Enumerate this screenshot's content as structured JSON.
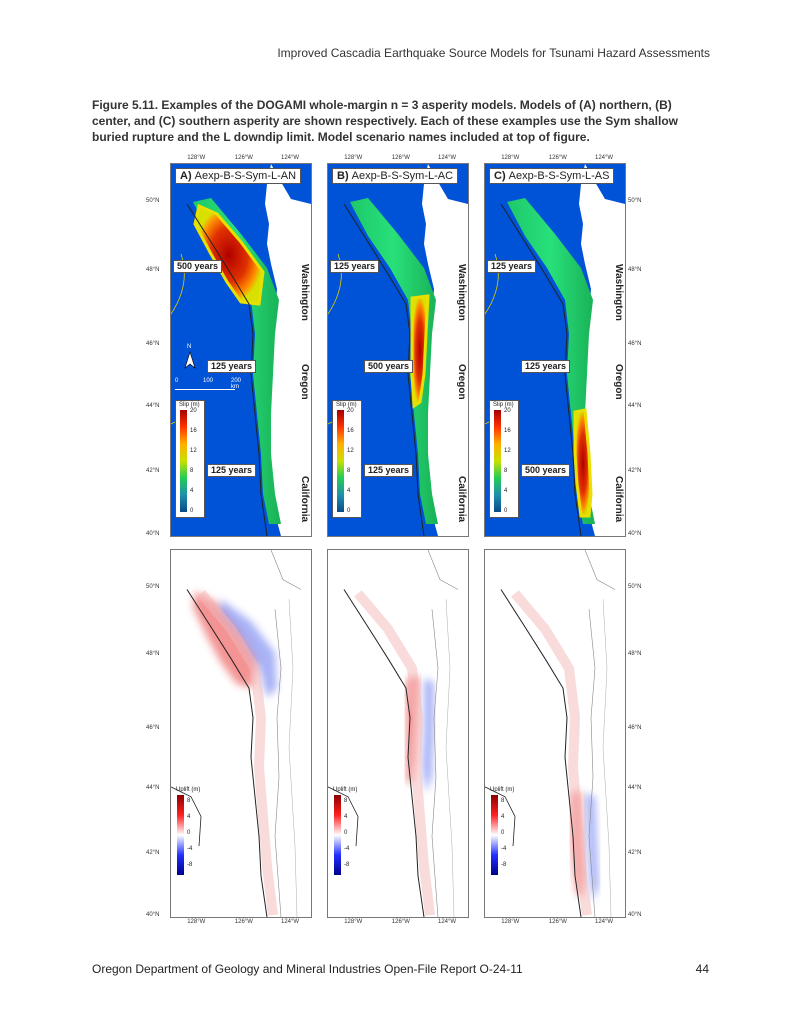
{
  "header": {
    "title": "Improved Cascadia Earthquake Source Models for Tsunami Hazard Assessments"
  },
  "caption": {
    "text": "Figure 5.11. Examples of the DOGAMI whole-margin n = 3 asperity models. Models of (A) northern, (B) center, and (C) southern asperity are shown respectively. Each of these examples use the Sym shallow buried rupture and the L downdip limit. Model scenario names included at top of figure."
  },
  "axes": {
    "lon_ticks": [
      "128°W",
      "126°W",
      "124°W"
    ],
    "lat_ticks": [
      "50°N",
      "48°N",
      "46°N",
      "44°N",
      "42°N",
      "40°N"
    ]
  },
  "panels": [
    {
      "letter": "A)",
      "name": "Aexp-B-S-Sym-L-AN",
      "years": [
        "500 years",
        "125 years",
        "125 years"
      ]
    },
    {
      "letter": "B)",
      "name": "Aexp-B-S-Sym-L-AC",
      "years": [
        "125 years",
        "500 years",
        "125 years"
      ]
    },
    {
      "letter": "C)",
      "name": "Aexp-B-S-Sym-L-AS",
      "years": [
        "125 years",
        "125 years",
        "500 years"
      ]
    }
  ],
  "states": {
    "washington": "Washington",
    "oregon": "Oregon",
    "california": "California"
  },
  "scale": {
    "north": "N",
    "labels": [
      "0",
      "100",
      "200 km"
    ]
  },
  "slip_colorbar": {
    "title": "Slip (m)",
    "ticks": [
      "20",
      "16",
      "12",
      "8",
      "4",
      "0"
    ],
    "colors": [
      "#a50000",
      "#ff3300",
      "#ffb000",
      "#c8e000",
      "#22cc55",
      "#1e90aa",
      "#0a4a8a"
    ]
  },
  "uplift_colorbar": {
    "title": "Uplift (m)",
    "ticks": [
      "8",
      "4",
      "0",
      "-4",
      "-8"
    ],
    "colors": [
      "#8b0000",
      "#ff2020",
      "#ffffff",
      "#2030ff",
      "#00008b"
    ]
  },
  "footer": {
    "left": "Oregon Department of Geology and Mineral Industries Open-File Report O-24-11",
    "right": "44"
  }
}
